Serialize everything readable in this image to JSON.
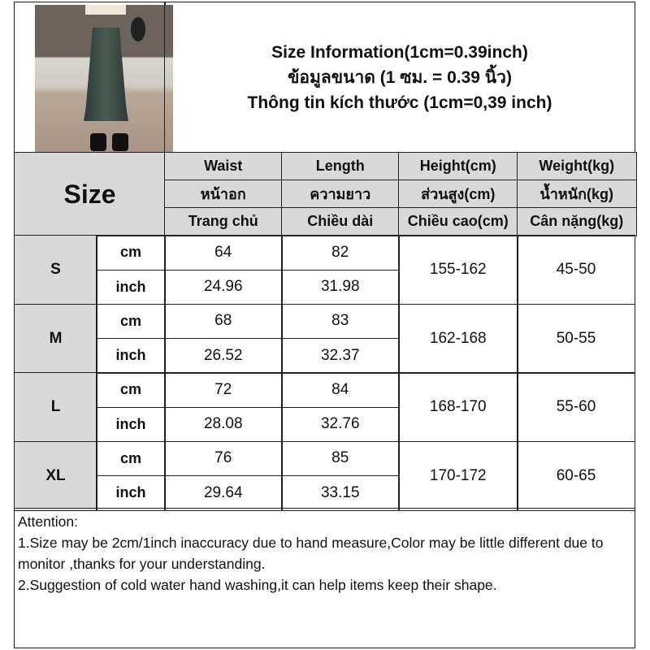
{
  "title": {
    "line1": "Size Information(1cm=0.39inch)",
    "line2": "ข้อมูลขนาด (1 ซม. = 0.39 นิ้ว)",
    "line3": "Thông tin kích thước (1cm=0,39 inch)"
  },
  "size_label": "Size",
  "columns": [
    {
      "en": "Waist",
      "th": "หน้าอก",
      "vi": "Trang chủ"
    },
    {
      "en": "Length",
      "th": "ความยาว",
      "vi": "Chiều dài"
    },
    {
      "en": "Height(cm)",
      "th": "ส่วนสูง(cm)",
      "vi": "Chiều cao(cm)"
    },
    {
      "en": "Weight(kg)",
      "th": "น้ำหนัก(kg)",
      "vi": "Cân nặng(kg)"
    }
  ],
  "units": {
    "cm": "cm",
    "inch": "inch"
  },
  "rows": [
    {
      "size": "S",
      "waist_cm": "64",
      "length_cm": "82",
      "waist_in": "24.96",
      "length_in": "31.98",
      "height": "155-162",
      "weight": "45-50"
    },
    {
      "size": "M",
      "waist_cm": "68",
      "length_cm": "83",
      "waist_in": "26.52",
      "length_in": "32.37",
      "height": "162-168",
      "weight": "50-55"
    },
    {
      "size": "L",
      "waist_cm": "72",
      "length_cm": "84",
      "waist_in": "28.08",
      "length_in": "32.76",
      "height": "168-170",
      "weight": "55-60"
    },
    {
      "size": "XL",
      "waist_cm": "76",
      "length_cm": "85",
      "waist_in": "29.64",
      "length_in": "33.15",
      "height": "170-172",
      "weight": "60-65"
    }
  ],
  "attention": {
    "heading": "Attention:",
    "line1": "1.Size may be 2cm/1inch inaccuracy due to hand measure,Color may be little different due to monitor ,thanks for your understanding.",
    "line2": "2.Suggestion of cold water hand washing,it can help items keep their shape."
  }
}
